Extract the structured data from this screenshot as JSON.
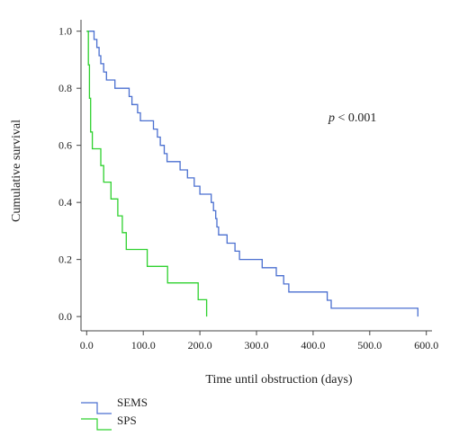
{
  "chart_data": {
    "type": "line",
    "step": true,
    "title": "",
    "xlabel": "Time until obstruction (days)",
    "ylabel": "Cumulative survival",
    "xlim": [
      -10,
      610
    ],
    "ylim": [
      -0.05,
      1.04
    ],
    "x_ticks": [
      0,
      100,
      200,
      300,
      400,
      500,
      600
    ],
    "x_tick_labels": [
      "0.0",
      "100.0",
      "200.0",
      "300.0",
      "400.0",
      "500.0",
      "600.0"
    ],
    "y_ticks": [
      0.0,
      0.2,
      0.4,
      0.6,
      0.8,
      1.0
    ],
    "y_tick_labels": [
      "0.0",
      "0.2",
      "0.4",
      "0.6",
      "0.8",
      "1.0"
    ],
    "grid": false,
    "annotation": {
      "prefix": "p",
      "text": " < 0.001"
    },
    "legend_position": "bottom-left",
    "series": [
      {
        "name": "SEMS",
        "color": "#4a6fd0",
        "points": [
          [
            0,
            1.0
          ],
          [
            13,
            1.0
          ],
          [
            13,
            0.971
          ],
          [
            18,
            0.971
          ],
          [
            18,
            0.943
          ],
          [
            22,
            0.943
          ],
          [
            22,
            0.914
          ],
          [
            25,
            0.914
          ],
          [
            25,
            0.886
          ],
          [
            30,
            0.886
          ],
          [
            30,
            0.857
          ],
          [
            35,
            0.857
          ],
          [
            35,
            0.829
          ],
          [
            50,
            0.829
          ],
          [
            50,
            0.8
          ],
          [
            75,
            0.8
          ],
          [
            75,
            0.771
          ],
          [
            80,
            0.771
          ],
          [
            80,
            0.743
          ],
          [
            90,
            0.743
          ],
          [
            90,
            0.714
          ],
          [
            95,
            0.714
          ],
          [
            95,
            0.686
          ],
          [
            118,
            0.686
          ],
          [
            118,
            0.657
          ],
          [
            125,
            0.657
          ],
          [
            125,
            0.629
          ],
          [
            130,
            0.629
          ],
          [
            130,
            0.6
          ],
          [
            137,
            0.6
          ],
          [
            137,
            0.571
          ],
          [
            142,
            0.571
          ],
          [
            142,
            0.543
          ],
          [
            165,
            0.543
          ],
          [
            165,
            0.514
          ],
          [
            178,
            0.514
          ],
          [
            178,
            0.486
          ],
          [
            190,
            0.486
          ],
          [
            190,
            0.457
          ],
          [
            200,
            0.457
          ],
          [
            200,
            0.429
          ],
          [
            220,
            0.429
          ],
          [
            220,
            0.4
          ],
          [
            224,
            0.4
          ],
          [
            224,
            0.371
          ],
          [
            228,
            0.371
          ],
          [
            228,
            0.343
          ],
          [
            230,
            0.343
          ],
          [
            230,
            0.314
          ],
          [
            233,
            0.314
          ],
          [
            233,
            0.286
          ],
          [
            248,
            0.286
          ],
          [
            248,
            0.257
          ],
          [
            262,
            0.257
          ],
          [
            262,
            0.229
          ],
          [
            270,
            0.229
          ],
          [
            270,
            0.2
          ],
          [
            310,
            0.2
          ],
          [
            310,
            0.171
          ],
          [
            335,
            0.171
          ],
          [
            335,
            0.143
          ],
          [
            348,
            0.143
          ],
          [
            348,
            0.114
          ],
          [
            357,
            0.114
          ],
          [
            357,
            0.086
          ],
          [
            425,
            0.086
          ],
          [
            425,
            0.057
          ],
          [
            432,
            0.057
          ],
          [
            432,
            0.029
          ],
          [
            585,
            0.029
          ],
          [
            585,
            0.0
          ]
        ]
      },
      {
        "name": "SPS",
        "color": "#2ed12e",
        "points": [
          [
            0,
            1.0
          ],
          [
            3,
            1.0
          ],
          [
            3,
            0.882
          ],
          [
            5,
            0.882
          ],
          [
            5,
            0.765
          ],
          [
            7,
            0.765
          ],
          [
            7,
            0.647
          ],
          [
            10,
            0.647
          ],
          [
            10,
            0.588
          ],
          [
            25,
            0.588
          ],
          [
            25,
            0.529
          ],
          [
            30,
            0.529
          ],
          [
            30,
            0.471
          ],
          [
            43,
            0.471
          ],
          [
            43,
            0.412
          ],
          [
            55,
            0.412
          ],
          [
            55,
            0.353
          ],
          [
            63,
            0.353
          ],
          [
            63,
            0.294
          ],
          [
            70,
            0.294
          ],
          [
            70,
            0.235
          ],
          [
            107,
            0.235
          ],
          [
            107,
            0.176
          ],
          [
            143,
            0.176
          ],
          [
            143,
            0.118
          ],
          [
            197,
            0.118
          ],
          [
            197,
            0.059
          ],
          [
            212,
            0.059
          ],
          [
            212,
            0.0
          ]
        ]
      }
    ]
  }
}
